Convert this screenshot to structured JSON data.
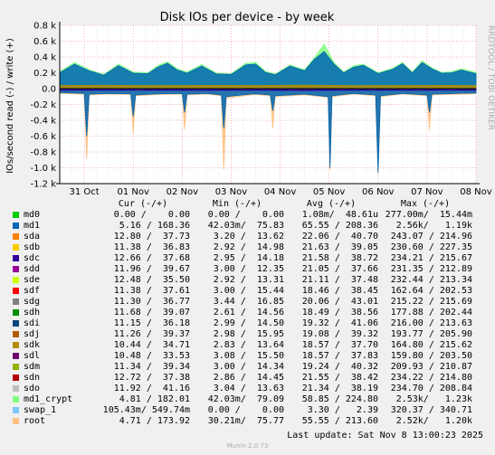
{
  "title": "Disk IOs per device - by week",
  "side_label": "RRDTOOL / TOBI OETIKER",
  "ylabel": "IOs/second read (-) / write (+)",
  "legend_headers": [
    "Cur (-/+)",
    "Min (-/+)",
    "Avg (-/+)",
    "Max (-/+)"
  ],
  "legend": [
    {
      "name": "md0",
      "color": "#00cc00",
      "cur": "0.00 /    0.00",
      "min": "0.00 /    0.00",
      "avg": "1.08m/  48.61u",
      "max": "277.00m/  15.44m"
    },
    {
      "name": "md1",
      "color": "#0066b3",
      "cur": "5.16 / 168.36",
      "min": "42.03m/  75.83",
      "avg": "65.55 / 208.36",
      "max": "2.56k/   1.19k"
    },
    {
      "name": "sda",
      "color": "#ff8000",
      "cur": "12.80 /  37.73",
      "min": "3.20 /  13.62",
      "avg": "22.06 /  40.70",
      "max": "243.07 / 214.96"
    },
    {
      "name": "sdb",
      "color": "#ffcc00",
      "cur": "11.38 /  36.83",
      "min": "2.92 /  14.98",
      "avg": "21.63 /  39.05",
      "max": "230.60 / 227.35"
    },
    {
      "name": "sdc",
      "color": "#330099",
      "cur": "12.66 /  37.68",
      "min": "2.95 /  14.18",
      "avg": "21.58 /  38.72",
      "max": "234.21 / 215.67"
    },
    {
      "name": "sdd",
      "color": "#990099",
      "cur": "11.96 /  39.67",
      "min": "3.00 /  12.35",
      "avg": "21.05 /  37.66",
      "max": "231.35 / 212.89"
    },
    {
      "name": "sde",
      "color": "#ccff00",
      "cur": "12.48 /  35.50",
      "min": "2.92 /  13.31",
      "avg": "21.11 /  37.48",
      "max": "232.44 / 213.34"
    },
    {
      "name": "sdf",
      "color": "#ff0000",
      "cur": "11.38 /  37.61",
      "min": "3.00 /  15.44",
      "avg": "18.46 /  38.45",
      "max": "162.64 / 202.53"
    },
    {
      "name": "sdg",
      "color": "#808080",
      "cur": "11.30 /  36.77",
      "min": "3.44 /  16.85",
      "avg": "20.06 /  43.01",
      "max": "215.22 / 215.69"
    },
    {
      "name": "sdh",
      "color": "#008f00",
      "cur": "11.68 /  39.07",
      "min": "2.61 /  14.56",
      "avg": "18.49 /  38.56",
      "max": "177.88 / 202.44"
    },
    {
      "name": "sdi",
      "color": "#00487d",
      "cur": "11.15 /  36.18",
      "min": "2.99 /  14.50",
      "avg": "19.32 /  41.06",
      "max": "216.00 / 213.63"
    },
    {
      "name": "sdj",
      "color": "#b35a00",
      "cur": "11.26 /  39.37",
      "min": "2.98 /  15.95",
      "avg": "19.08 /  39.32",
      "max": "193.77 / 205.90"
    },
    {
      "name": "sdk",
      "color": "#b38f00",
      "cur": "10.44 /  34.71",
      "min": "2.83 /  13.64",
      "avg": "18.57 /  37.70",
      "max": "164.80 / 215.62"
    },
    {
      "name": "sdl",
      "color": "#6b006b",
      "cur": "10.48 /  33.53",
      "min": "3.08 /  15.50",
      "avg": "18.57 /  37.83",
      "max": "159.80 / 203.50"
    },
    {
      "name": "sdm",
      "color": "#8fb300",
      "cur": "11.34 /  39.34",
      "min": "3.00 /  14.34",
      "avg": "19.24 /  40.32",
      "max": "209.93 / 210.87"
    },
    {
      "name": "sdn",
      "color": "#b30000",
      "cur": "12.72 /  37.38",
      "min": "2.86 /  14.45",
      "avg": "21.55 /  38.42",
      "max": "234.22 / 214.80"
    },
    {
      "name": "sdo",
      "color": "#bebebe",
      "cur": "11.92 /  41.16",
      "min": "3.04 /  13.63",
      "avg": "21.34 /  38.19",
      "max": "234.70 / 208.84"
    },
    {
      "name": "md1_crypt",
      "color": "#80ff80",
      "cur": "4.81 / 182.01",
      "min": "42.03m/  79.09",
      "avg": "58.85 / 224.80",
      "max": "2.53k/   1.23k"
    },
    {
      "name": "swap_1",
      "color": "#80c9ff",
      "cur": "105.43m/ 549.74m",
      "min": "0.00 /    0.00",
      "avg": "3.30 /   2.39",
      "max": "320.37 / 340.71"
    },
    {
      "name": "root",
      "color": "#ffc080",
      "cur": "4.71 / 173.92",
      "min": "30.21m/  75.77",
      "avg": "55.55 / 213.60",
      "max": "2.52k/   1.20k"
    }
  ],
  "last_update": "Last update: Sat Nov  8 13:00:23 2025",
  "footer": "Munin 2.0.73",
  "chart_data": {
    "type": "area",
    "title": "Disk IOs per device - by week",
    "ylabel": "IOs/second read (-) / write (+)",
    "ylim": [
      -1200,
      800
    ],
    "yticks": [
      800,
      600,
      400,
      200,
      0,
      -200,
      -400,
      -600,
      -800,
      -1000,
      -1200
    ],
    "ytick_labels": [
      "0.8 k",
      "0.6 k",
      "0.4 k",
      "0.2 k",
      "0.0",
      "-0.2 k",
      "-0.4 k",
      "-0.6 k",
      "-0.8 k",
      "-1.0 k",
      "-1.2 k"
    ],
    "xlim": [
      0,
      8.5
    ],
    "xticks": [
      0.5,
      1.5,
      2.5,
      3.5,
      4.5,
      5.5,
      6.5,
      7.5,
      8.5
    ],
    "xtick_labels": [
      "31 Oct",
      "01 Nov",
      "02 Nov",
      "03 Nov",
      "04 Nov",
      "05 Nov",
      "06 Nov",
      "07 Nov",
      "08 Nov"
    ],
    "grid": true,
    "write_series": [
      {
        "name": "md1_crypt",
        "color": "#80ff80",
        "x": [
          0,
          0.3,
          0.6,
          0.9,
          1.2,
          1.5,
          1.8,
          2.0,
          2.2,
          2.4,
          2.6,
          2.9,
          3.2,
          3.5,
          3.8,
          4.0,
          4.2,
          4.4,
          4.7,
          5.0,
          5.2,
          5.4,
          5.6,
          5.8,
          6.0,
          6.2,
          6.5,
          6.8,
          7.0,
          7.2,
          7.4,
          7.6,
          7.8,
          8.0,
          8.2,
          8.5
        ],
        "values": [
          215,
          330,
          240,
          180,
          310,
          210,
          200,
          290,
          340,
          250,
          210,
          305,
          195,
          190,
          320,
          330,
          220,
          185,
          300,
          240,
          390,
          560,
          330,
          210,
          290,
          310,
          200,
          260,
          330,
          210,
          350,
          265,
          205,
          215,
          250,
          205
        ]
      },
      {
        "name": "md1",
        "color": "#0066b3",
        "x": [
          0,
          0.3,
          0.6,
          0.9,
          1.2,
          1.5,
          1.8,
          2.0,
          2.2,
          2.4,
          2.6,
          2.9,
          3.2,
          3.5,
          3.8,
          4.0,
          4.2,
          4.4,
          4.7,
          5.0,
          5.2,
          5.4,
          5.6,
          5.8,
          6.0,
          6.2,
          6.5,
          6.8,
          7.0,
          7.2,
          7.4,
          7.6,
          7.8,
          8.0,
          8.2,
          8.5
        ],
        "values": [
          200,
          310,
          225,
          170,
          290,
          195,
          190,
          270,
          320,
          235,
          195,
          285,
          185,
          180,
          300,
          310,
          205,
          175,
          285,
          225,
          370,
          470,
          310,
          200,
          270,
          295,
          190,
          245,
          315,
          200,
          330,
          250,
          195,
          200,
          235,
          190
        ]
      },
      {
        "name": "sda-sdo",
        "color": "#b38f00",
        "x": [
          0,
          1,
          2,
          3,
          4,
          5,
          6,
          7,
          8,
          8.5
        ],
        "values": [
          40,
          42,
          38,
          41,
          40,
          43,
          39,
          40,
          41,
          38
        ]
      }
    ],
    "read_series": [
      {
        "name": "root",
        "color": "#ffc080",
        "x": [
          0,
          0.5,
          0.55,
          0.6,
          1.0,
          1.45,
          1.5,
          1.55,
          2.0,
          2.5,
          2.55,
          2.6,
          3.0,
          3.3,
          3.35,
          3.4,
          3.9,
          4.0,
          4.3,
          4.35,
          4.4,
          5.0,
          5.48,
          5.52,
          5.56,
          6.0,
          6.45,
          6.5,
          6.55,
          7.0,
          7.5,
          7.55,
          7.6,
          8.5
        ],
        "values": [
          -60,
          -70,
          -890,
          -80,
          -70,
          -75,
          -560,
          -90,
          -75,
          -70,
          -520,
          -80,
          -70,
          -90,
          -1020,
          -120,
          -80,
          -75,
          -90,
          -500,
          -100,
          -80,
          -110,
          -1030,
          -100,
          -70,
          -90,
          -1080,
          -100,
          -70,
          -90,
          -520,
          -80,
          -65
        ]
      },
      {
        "name": "md1",
        "color": "#0066b3",
        "x": [
          0,
          0.5,
          0.55,
          0.6,
          1.0,
          1.45,
          1.5,
          1.55,
          2.0,
          2.5,
          2.55,
          2.6,
          3.0,
          3.3,
          3.35,
          3.4,
          3.9,
          4.0,
          4.3,
          4.35,
          4.4,
          5.0,
          5.48,
          5.52,
          5.56,
          6.0,
          6.45,
          6.5,
          6.55,
          7.0,
          7.5,
          7.55,
          7.6,
          8.5
        ],
        "values": [
          -50,
          -60,
          -600,
          -70,
          -60,
          -65,
          -350,
          -80,
          -65,
          -60,
          -300,
          -70,
          -60,
          -80,
          -500,
          -100,
          -70,
          -65,
          -80,
          -280,
          -90,
          -70,
          -100,
          -1000,
          -90,
          -60,
          -80,
          -1060,
          -90,
          -60,
          -80,
          -300,
          -70,
          -55
        ]
      },
      {
        "name": "sda-sdo",
        "color": "#330099",
        "x": [
          0,
          1,
          2,
          3,
          4,
          5,
          6,
          7,
          8,
          8.5
        ],
        "values": [
          -20,
          -22,
          -21,
          -23,
          -20,
          -24,
          -21,
          -22,
          -20,
          -21
        ]
      }
    ]
  }
}
